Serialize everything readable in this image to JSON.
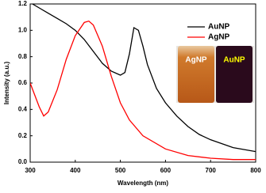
{
  "chart_data": {
    "type": "line",
    "xlabel": "Wavelength (nm)",
    "ylabel": "Intensity (a.u.)",
    "xlim": [
      300,
      800
    ],
    "xticks": [
      300,
      400,
      500,
      600,
      700,
      800
    ],
    "ylim": [
      0,
      1.2
    ],
    "yticks": [
      {
        "value": 0,
        "label": "0.0"
      },
      0.2,
      0.4,
      0.6,
      0.8,
      {
        "value": 1,
        "label": "1.0"
      },
      1.2
    ],
    "legend": "upper right",
    "annotations": [
      "AgNP",
      "AuNP"
    ],
    "series": [
      {
        "name": "AuNP",
        "color": "#000000",
        "x": [
          305,
          320,
          340,
          360,
          380,
          400,
          420,
          440,
          460,
          480,
          500,
          510,
          520,
          530,
          540,
          550,
          560,
          580,
          600,
          625,
          650,
          675,
          700,
          750,
          800
        ],
        "values": [
          1.2,
          1.17,
          1.13,
          1.09,
          1.05,
          1.0,
          0.93,
          0.84,
          0.75,
          0.69,
          0.66,
          0.68,
          0.82,
          1.02,
          1.0,
          0.88,
          0.74,
          0.56,
          0.45,
          0.35,
          0.27,
          0.21,
          0.17,
          0.11,
          0.08
        ]
      },
      {
        "name": "AgNP",
        "color": "#ff0000",
        "x": [
          300,
          320,
          330,
          340,
          360,
          380,
          400,
          420,
          430,
          440,
          460,
          480,
          500,
          520,
          550,
          600,
          650,
          700,
          750,
          800
        ],
        "values": [
          0.6,
          0.42,
          0.35,
          0.38,
          0.55,
          0.78,
          0.96,
          1.06,
          1.07,
          1.04,
          0.88,
          0.65,
          0.45,
          0.32,
          0.2,
          0.1,
          0.05,
          0.03,
          0.02,
          0.02
        ]
      }
    ]
  }
}
